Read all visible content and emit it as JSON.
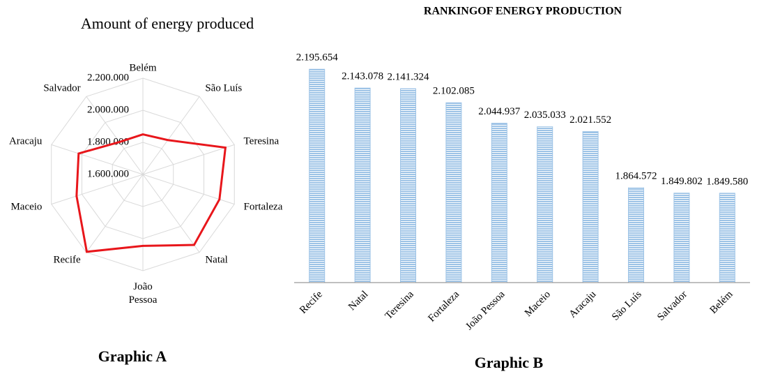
{
  "chart_data": [
    {
      "type": "radar",
      "title": "Amount of energy produced",
      "caption": "Graphic A",
      "categories": [
        "Belém",
        "São Luís",
        "Teresina",
        "Fortaleza",
        "Natal",
        "João Pessoa",
        "Recife",
        "Maceio",
        "Aracaju",
        "Salvador"
      ],
      "values": [
        1849580,
        1864572,
        2141324,
        2102085,
        2143078,
        2044937,
        2195654,
        2035033,
        2021552,
        1849802
      ],
      "color": "#e8161b",
      "ylim": [
        1600000,
        2200000
      ],
      "yticks": [
        {
          "value": 1600000,
          "label": "1.600.000"
        },
        {
          "value": 1800000,
          "label": "1.800.000"
        },
        {
          "value": 2000000,
          "label": "2.000.000"
        },
        {
          "value": 2200000,
          "label": "2.200.000"
        }
      ],
      "grid": true
    },
    {
      "type": "bar",
      "title": "RANKINGOF ENERGY PRODUCTION",
      "caption": "Graphic B",
      "categories": [
        "Recife",
        "Natal",
        "Teresina",
        "Fortaleza",
        "João Pessoa",
        "Maceio",
        "Aracaju",
        "São Luís",
        "Salvador",
        "Belém"
      ],
      "values": [
        2195654,
        2143078,
        2141324,
        2102085,
        2044937,
        2035033,
        2021552,
        1864572,
        1849802,
        1849580
      ],
      "value_labels": [
        "2.195.654",
        "2.143.078",
        "2.141.324",
        "2.102.085",
        "2.044.937",
        "2.035.033",
        "2.021.552",
        "1.864.572",
        "1.849.802",
        "1.849.580"
      ],
      "color": "#9dc3e6",
      "ylim": [
        1600000,
        2200000
      ]
    }
  ]
}
